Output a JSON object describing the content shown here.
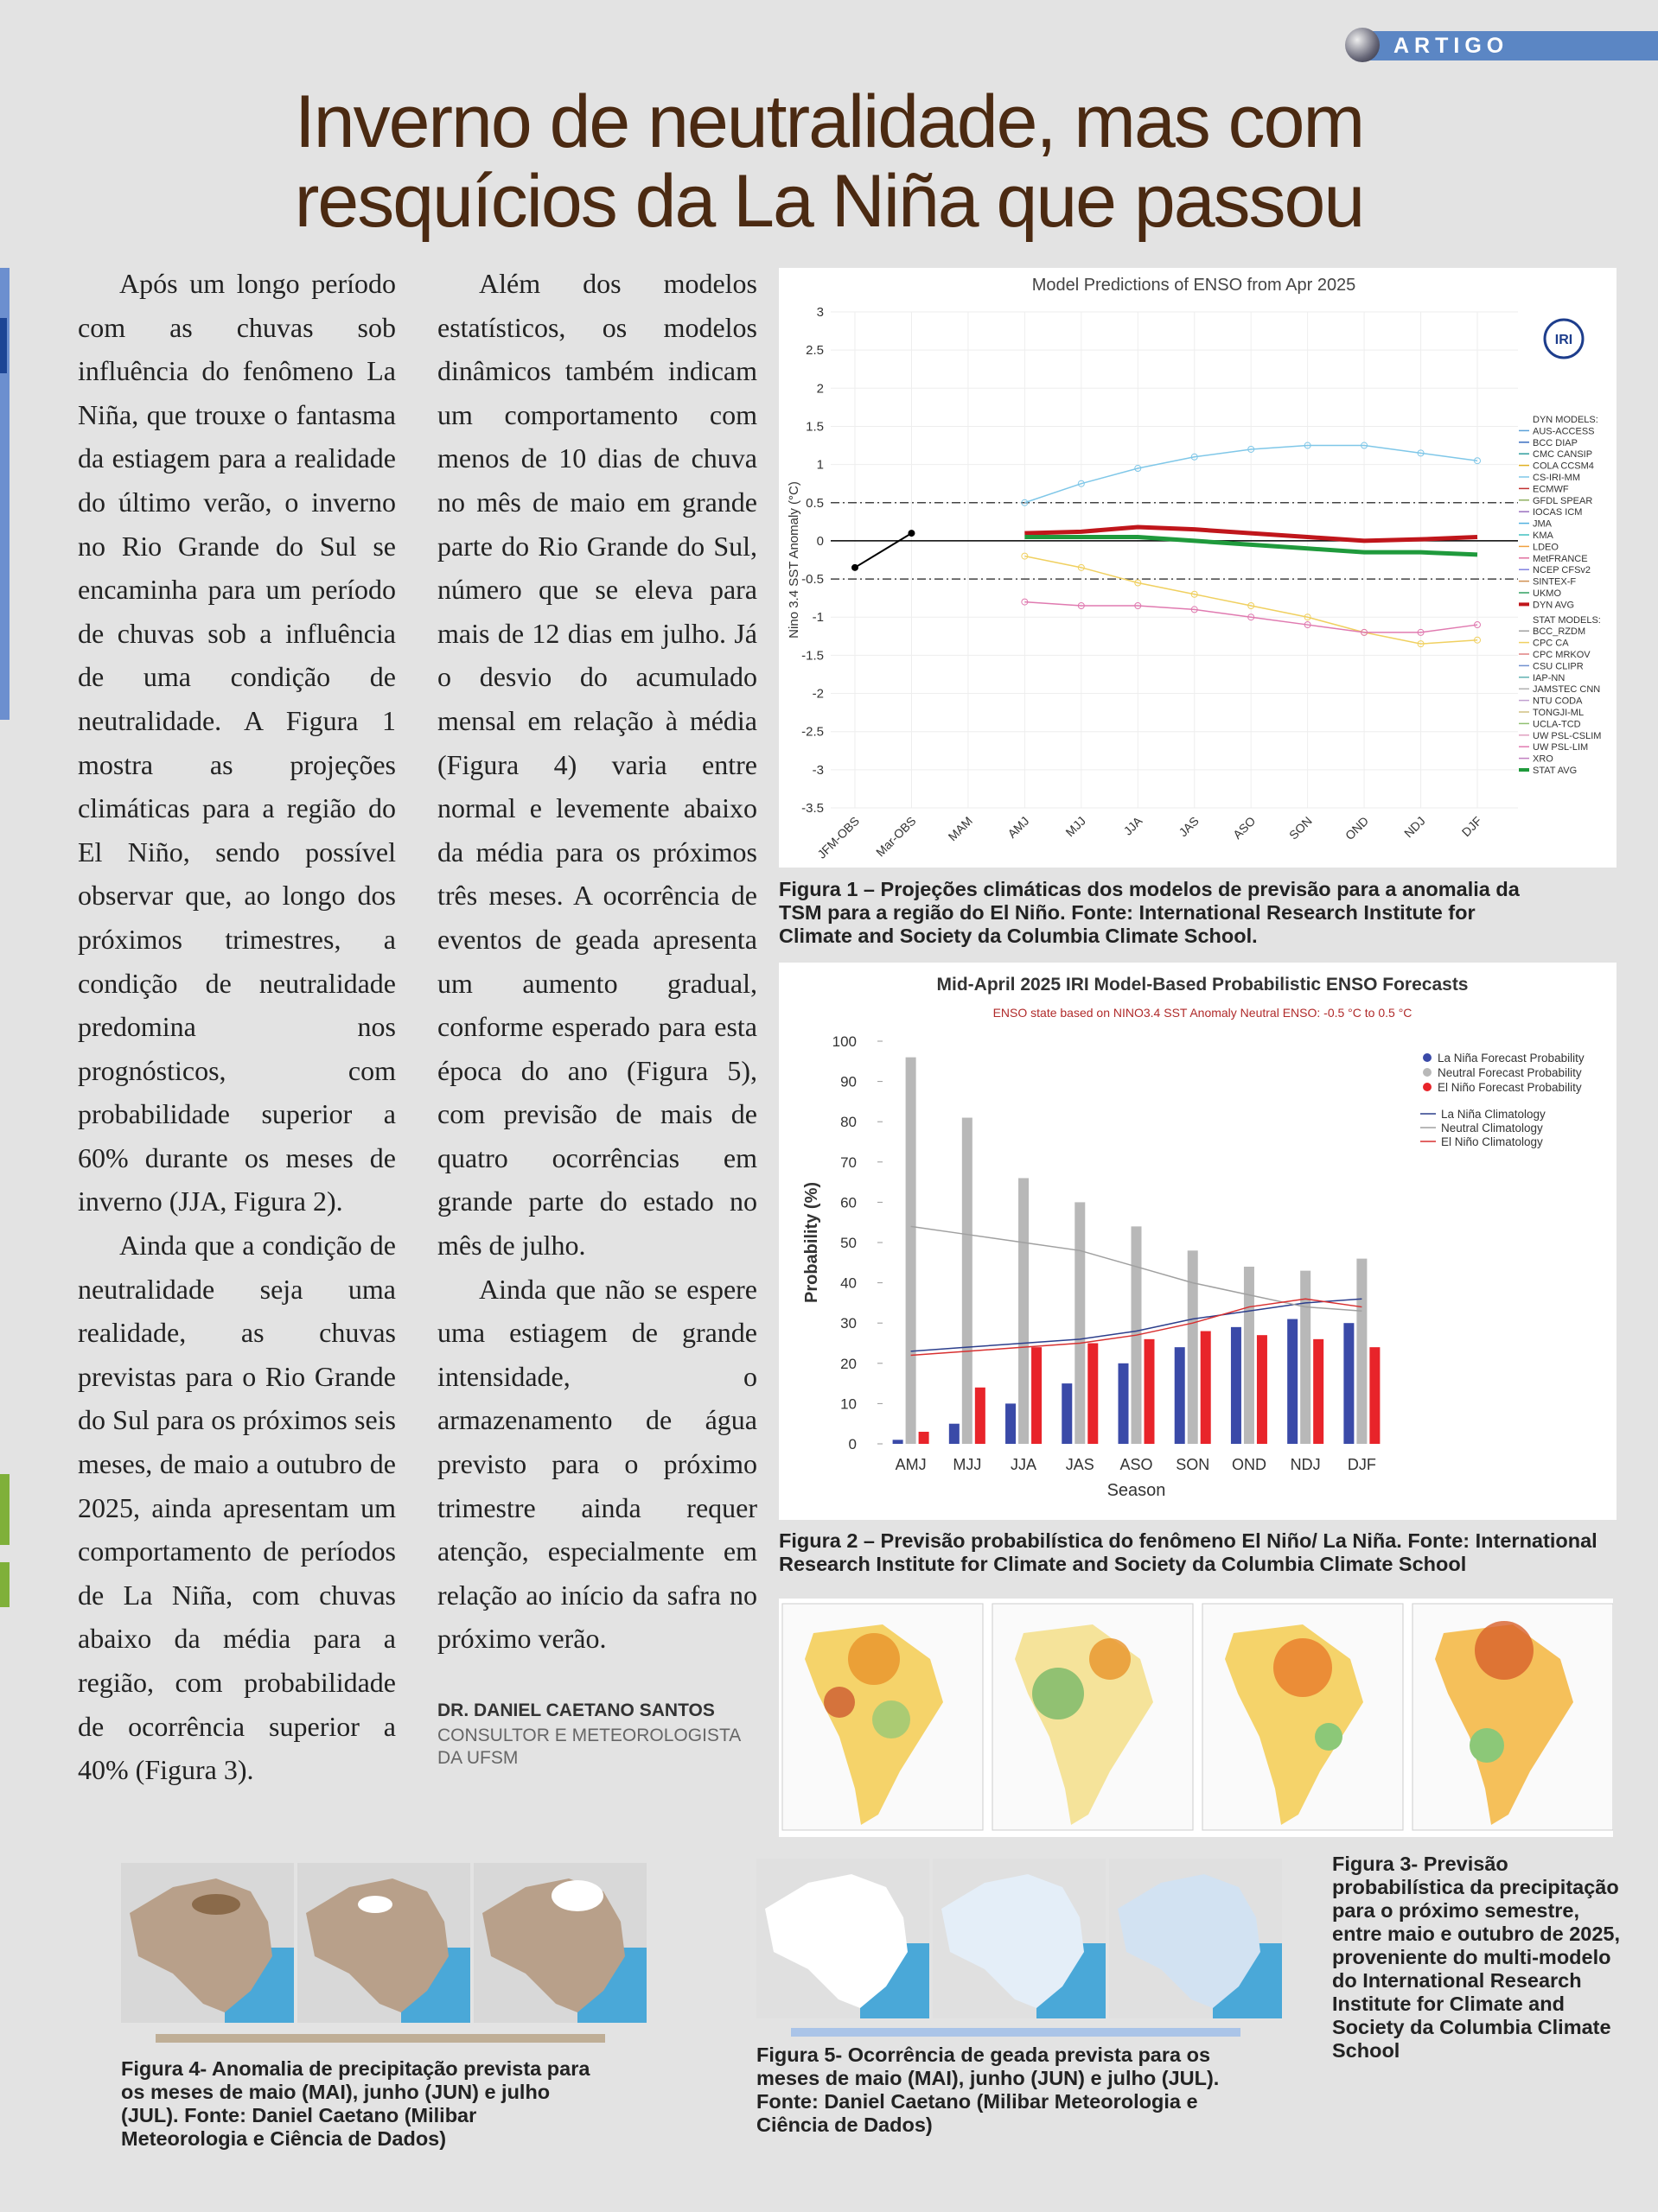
{
  "header": {
    "tag": "ARTIGO",
    "title_line1": "Inverno de neutralidade, mas com",
    "title_line2": "resquícios da La Niña que passou"
  },
  "columns": [
    [
      "Após um longo período com as chuvas sob influência do fenômeno La Niña, que trouxe o fantasma da estiagem para a realidade do último verão, o inverno no Rio Grande do Sul se encaminha para um período de chuvas sob a influência de uma condição de neutralidade. A Figura 1 mostra as projeções climáticas para a região do El Niño, sendo possível observar que, ao longo dos próximos trimestres, a condição de neutralidade predomina nos prognósticos, com probabilidade superior a 60% durante os meses de inverno (JJA, Figura 2).",
      "Ainda que a condição de neutralidade seja uma realidade, as chuvas previstas para o Rio Grande do Sul para os próximos seis meses, de maio a outubro de 2025, ainda apresentam um comportamento de períodos de La Niña, com chuvas abaixo da média para a região, com probabilidade de ocorrência superior a 40% (Figura 3)."
    ],
    [
      "Além dos modelos estatísticos, os modelos dinâmicos também indicam um comportamento com menos de 10 dias de chuva no mês de maio em grande parte do Rio Grande do Sul, número que se eleva para mais de 12 dias em julho. Já o desvio do acumulado mensal em relação à média (Figura 4) varia entre normal e levemente abaixo da média para os próximos três meses. A ocorrência de eventos de geada apresenta um aumento gradual, conforme esperado para esta época do ano (Figura 5), com previsão de mais de quatro ocorrências em grande parte do estado no mês de julho.",
      "Ainda que não se espere uma estiagem de grande intensidade, o armazenamento de água previsto para o próximo trimestre ainda requer atenção, especialmente em relação ao início da safra no próximo verão."
    ]
  ],
  "author": {
    "name": "DR. DANIEL CAETANO SANTOS",
    "role": "CONSULTOR E METEOROLOGISTA DA UFSM"
  },
  "figures": [
    {
      "caption": "Figura 1 – Projeções climáticas dos modelos de previsão para a anomalia da TSM para a região do El Niño. Fonte: International Research Institute for Climate and Society da Columbia Climate School.",
      "chart_data": {
        "type": "line",
        "title": "Model Predictions of ENSO from Apr 2025",
        "y_label": "Nino 3.4 SST Anomaly (°C)",
        "logo": "IRI",
        "categories": [
          "JFM-OBS",
          "Mar-OBS",
          "MAM",
          "AMJ",
          "MJJ",
          "JJA",
          "JAS",
          "ASO",
          "SON",
          "OND",
          "NDJ",
          "DJF"
        ],
        "ylim": [
          -3.5,
          3
        ],
        "yticks": [
          3,
          2.5,
          2,
          1.5,
          1,
          0.5,
          0,
          -0.5,
          -1,
          -1.5,
          -2,
          -2.5,
          -3,
          -3.5
        ],
        "grid": true,
        "observed": {
          "color": "#000000",
          "values": [
            -0.35,
            0.1,
            null,
            null,
            null,
            null,
            null,
            null,
            null,
            null,
            null,
            null
          ]
        },
        "legend_groups": [
          {
            "title": "DYN MODELS:",
            "series": [
              {
                "name": "AUS-ACCESS",
                "color": "#5aa0d8"
              },
              {
                "name": "BCC DIAP",
                "color": "#3a6cc0"
              },
              {
                "name": "CMC CANSIP",
                "color": "#2f9e9e"
              },
              {
                "name": "COLA CCSM4",
                "color": "#e0b020"
              },
              {
                "name": "CS-IRI-MM",
                "color": "#7fc7e8",
                "values": [
                  null,
                  null,
                  null,
                  0.5,
                  0.75,
                  0.95,
                  1.1,
                  1.2,
                  1.25,
                  1.25,
                  1.15,
                  1.05
                ]
              },
              {
                "name": "ECMWF",
                "color": "#c03030"
              },
              {
                "name": "GFDL SPEAR",
                "color": "#8fb060"
              },
              {
                "name": "IOCAS ICM",
                "color": "#9a70c0"
              },
              {
                "name": "JMA",
                "color": "#50b0e0"
              },
              {
                "name": "KMA",
                "color": "#40c0c0"
              },
              {
                "name": "LDEO",
                "color": "#f0a040"
              },
              {
                "name": "MetFRANCE",
                "color": "#e070a0"
              },
              {
                "name": "NCEP CFSv2",
                "color": "#8080e0"
              },
              {
                "name": "SINTEX-F",
                "color": "#d09050"
              },
              {
                "name": "UKMO",
                "color": "#30a060"
              },
              {
                "name": "DYN AVG",
                "color": "#c0161b",
                "values": [
                  null,
                  null,
                  null,
                  0.1,
                  0.12,
                  0.18,
                  0.15,
                  0.1,
                  0.05,
                  0.0,
                  0.02,
                  0.05
                ]
              }
            ]
          },
          {
            "title": "STAT MODELS:",
            "series": [
              {
                "name": "BCC_RZDM",
                "color": "#a0a0a0"
              },
              {
                "name": "CPC CA",
                "color": "#f0d060",
                "values": [
                  null,
                  null,
                  null,
                  -0.2,
                  -0.35,
                  -0.55,
                  -0.7,
                  -0.85,
                  -1.0,
                  -1.2,
                  -1.35,
                  -1.3
                ]
              },
              {
                "name": "CPC MRKOV",
                "color": "#e08080"
              },
              {
                "name": "CSU CLIPR",
                "color": "#7090d0"
              },
              {
                "name": "IAP-NN",
                "color": "#60b0b0"
              },
              {
                "name": "JAMSTEC CNN",
                "color": "#b0b0b0"
              },
              {
                "name": "NTU CODA",
                "color": "#c0a0d0"
              },
              {
                "name": "TONGJI-ML",
                "color": "#d0c080"
              },
              {
                "name": "UCLA-TCD",
                "color": "#90c070"
              },
              {
                "name": "UW PSL-CSLIM",
                "color": "#e0a0c0"
              },
              {
                "name": "UW PSL-LIM",
                "color": "#e07ab0",
                "values": [
                  null,
                  null,
                  null,
                  -0.8,
                  -0.85,
                  -0.85,
                  -0.9,
                  -1.0,
                  -1.1,
                  -1.2,
                  -1.2,
                  -1.1
                ]
              },
              {
                "name": "XRO",
                "color": "#c080c0"
              },
              {
                "name": "STAT AVG",
                "color": "#1f9a3c",
                "values": [
                  null,
                  null,
                  null,
                  0.05,
                  0.05,
                  0.05,
                  0.0,
                  -0.05,
                  -0.1,
                  -0.15,
                  -0.15,
                  -0.18
                ]
              }
            ]
          }
        ]
      }
    },
    {
      "caption": "Figura 2 – Previsão probabilística do fenômeno El Niño/ La Niña. Fonte: International Research Institute for Climate and Society da Columbia Climate School",
      "chart_data": {
        "type": "bar",
        "title": "Mid-April 2025 IRI Model-Based Probabilistic ENSO Forecasts",
        "subtitle": "ENSO state based on NINO3.4 SST Anomaly Neutral ENSO: -0.5 °C to 0.5 °C",
        "y_label": "Probability (%)",
        "x_label": "Season",
        "categories": [
          "AMJ",
          "MJJ",
          "JJA",
          "JAS",
          "ASO",
          "SON",
          "OND",
          "NDJ",
          "DJF"
        ],
        "ylim": [
          0,
          100
        ],
        "yticks": [
          0,
          10,
          20,
          30,
          40,
          50,
          60,
          70,
          80,
          90,
          100
        ],
        "series": [
          {
            "name": "La Niña Forecast Probability",
            "color": "#3a4aa8",
            "values": [
              1,
              5,
              10,
              15,
              20,
              24,
              29,
              31,
              30
            ]
          },
          {
            "name": "Neutral Forecast Probability",
            "color": "#b8b8b8",
            "values": [
              96,
              81,
              66,
              60,
              54,
              48,
              44,
              43,
              46
            ]
          },
          {
            "name": "El Niño Forecast Probability",
            "color": "#e8242a",
            "values": [
              3,
              14,
              24,
              25,
              26,
              28,
              27,
              26,
              24
            ]
          }
        ],
        "lines": [
          {
            "name": "La Niña Climatology",
            "color": "#2c3e8c",
            "values": [
              23,
              24,
              25,
              26,
              28,
              31,
              33,
              35,
              36
            ]
          },
          {
            "name": "Neutral Climatology",
            "color": "#a0a0a0",
            "values": [
              54,
              52,
              50,
              48,
              44,
              40,
              37,
              34,
              33
            ]
          },
          {
            "name": "El Niño Climatology",
            "color": "#d83030",
            "values": [
              22,
              23,
              24,
              25,
              27,
              30,
              34,
              36,
              34
            ]
          }
        ]
      }
    },
    {
      "caption": "Figura 3- Previsão probabilística da precipitação para o próximo semestre, entre maio e outubro de 2025, proveniente do multi-modelo do International Research Institute for Climate and Society da Columbia Climate School"
    },
    {
      "caption": "Figura 4- Anomalia de precipitação prevista para os meses de maio (MAI), junho (JUN) e julho (JUL). Fonte: Daniel Caetano (Milibar Meteorologia e Ciência de Dados)"
    },
    {
      "caption": "Figura 5- Ocorrência de geada prevista para os meses de maio (MAI), junho (JUN) e julho (JUL). Fonte: Daniel Caetano (Milibar Meteorologia e Ciência de Dados)"
    }
  ]
}
